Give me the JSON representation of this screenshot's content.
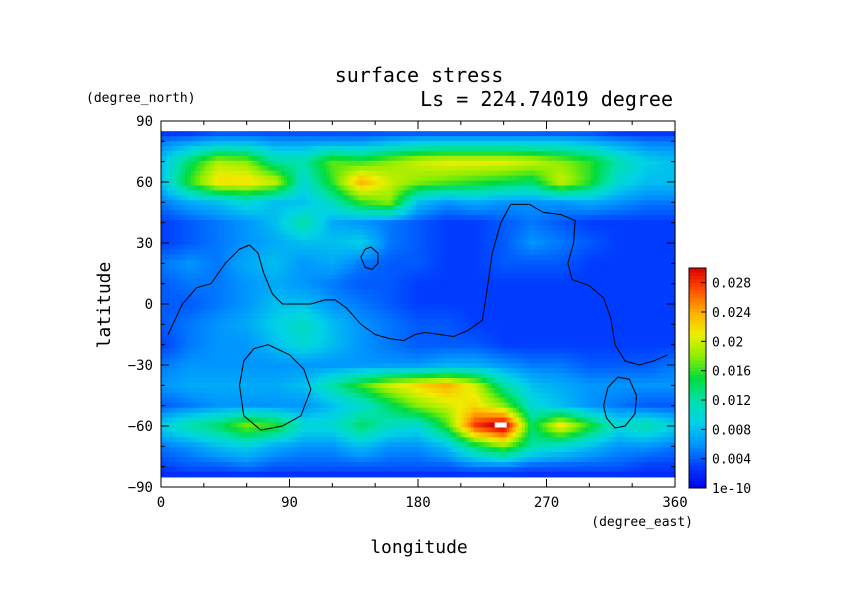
{
  "chart_data": {
    "type": "heatmap",
    "title": "surface stress",
    "subtitle": "Ls = 224.74019 degree",
    "xlabel": "longitude",
    "ylabel": "latitude",
    "x_unit": "(degree_east)",
    "y_unit": "(degree_north)",
    "xlim": [
      0,
      360
    ],
    "ylim": [
      -90,
      90
    ],
    "x_ticks": [
      0,
      90,
      180,
      270,
      360
    ],
    "y_ticks": [
      90,
      60,
      30,
      0,
      -30,
      -60,
      -90
    ],
    "colorbar": {
      "min": 1e-10,
      "max": 0.03,
      "labels": [
        "0.028",
        "0.024",
        "0.02",
        "0.016",
        "0.012",
        "0.008",
        "0.004",
        "1e-10"
      ],
      "label_values": [
        0.028,
        0.024,
        0.02,
        0.016,
        0.012,
        0.008,
        0.004,
        0
      ]
    },
    "grid_note": "approximate field, lon step 20°, lat step 10°",
    "grid": {
      "lons": [
        0,
        20,
        40,
        60,
        80,
        100,
        120,
        140,
        160,
        180,
        200,
        220,
        240,
        260,
        280,
        300,
        320,
        340,
        360
      ],
      "lats": [
        85,
        80,
        70,
        60,
        50,
        40,
        30,
        20,
        10,
        0,
        -10,
        -20,
        -30,
        -40,
        -50,
        -60,
        -70,
        -80,
        -85
      ],
      "values": [
        [
          0.002,
          0.002,
          0.003,
          0.003,
          0.003,
          0.003,
          0.003,
          0.003,
          0.003,
          0.003,
          0.003,
          0.003,
          0.003,
          0.003,
          0.003,
          0.003,
          0.002,
          0.002,
          0.002
        ],
        [
          0.005,
          0.006,
          0.007,
          0.007,
          0.006,
          0.006,
          0.006,
          0.006,
          0.007,
          0.008,
          0.008,
          0.008,
          0.008,
          0.008,
          0.008,
          0.007,
          0.006,
          0.005,
          0.005
        ],
        [
          0.008,
          0.014,
          0.019,
          0.018,
          0.012,
          0.012,
          0.017,
          0.016,
          0.018,
          0.02,
          0.021,
          0.021,
          0.021,
          0.02,
          0.018,
          0.016,
          0.012,
          0.009,
          0.008
        ],
        [
          0.008,
          0.016,
          0.022,
          0.022,
          0.02,
          0.01,
          0.016,
          0.024,
          0.02,
          0.018,
          0.017,
          0.016,
          0.015,
          0.014,
          0.02,
          0.016,
          0.01,
          0.008,
          0.008
        ],
        [
          0.005,
          0.007,
          0.008,
          0.01,
          0.008,
          0.008,
          0.011,
          0.016,
          0.018,
          0.008,
          0.006,
          0.007,
          0.006,
          0.006,
          0.006,
          0.007,
          0.006,
          0.005,
          0.005
        ],
        [
          0.003,
          0.004,
          0.005,
          0.006,
          0.008,
          0.012,
          0.007,
          0.006,
          0.005,
          0.004,
          0.003,
          0.003,
          0.004,
          0.005,
          0.004,
          0.003,
          0.003,
          0.003,
          0.003
        ],
        [
          0.003,
          0.004,
          0.005,
          0.006,
          0.007,
          0.008,
          0.008,
          0.009,
          0.005,
          0.004,
          0.003,
          0.003,
          0.004,
          0.006,
          0.005,
          0.004,
          0.003,
          0.003,
          0.003
        ],
        [
          0.005,
          0.006,
          0.005,
          0.007,
          0.008,
          0.006,
          0.007,
          0.005,
          0.004,
          0.004,
          0.003,
          0.003,
          0.004,
          0.004,
          0.004,
          0.003,
          0.003,
          0.003,
          0.003
        ],
        [
          0.004,
          0.005,
          0.005,
          0.006,
          0.007,
          0.006,
          0.005,
          0.004,
          0.004,
          0.003,
          0.003,
          0.003,
          0.003,
          0.003,
          0.003,
          0.003,
          0.003,
          0.003,
          0.003
        ],
        [
          0.004,
          0.004,
          0.005,
          0.006,
          0.008,
          0.008,
          0.006,
          0.005,
          0.004,
          0.003,
          0.003,
          0.003,
          0.003,
          0.003,
          0.003,
          0.003,
          0.003,
          0.003,
          0.003
        ],
        [
          0.004,
          0.005,
          0.006,
          0.007,
          0.009,
          0.011,
          0.008,
          0.006,
          0.005,
          0.004,
          0.004,
          0.003,
          0.003,
          0.003,
          0.003,
          0.003,
          0.003,
          0.003,
          0.003
        ],
        [
          0.003,
          0.005,
          0.006,
          0.006,
          0.008,
          0.01,
          0.008,
          0.006,
          0.005,
          0.004,
          0.004,
          0.004,
          0.003,
          0.003,
          0.003,
          0.003,
          0.003,
          0.003,
          0.003
        ],
        [
          0.005,
          0.006,
          0.006,
          0.006,
          0.006,
          0.006,
          0.006,
          0.006,
          0.006,
          0.006,
          0.007,
          0.007,
          0.006,
          0.005,
          0.005,
          0.004,
          0.004,
          0.004,
          0.005
        ],
        [
          0.006,
          0.007,
          0.007,
          0.007,
          0.007,
          0.008,
          0.012,
          0.016,
          0.02,
          0.022,
          0.024,
          0.02,
          0.012,
          0.008,
          0.007,
          0.006,
          0.006,
          0.006,
          0.006
        ],
        [
          0.004,
          0.005,
          0.006,
          0.006,
          0.006,
          0.006,
          0.008,
          0.01,
          0.014,
          0.018,
          0.02,
          0.022,
          0.018,
          0.01,
          0.008,
          0.006,
          0.005,
          0.004,
          0.004
        ],
        [
          0.009,
          0.012,
          0.014,
          0.018,
          0.016,
          0.01,
          0.01,
          0.014,
          0.011,
          0.01,
          0.016,
          0.028,
          0.032,
          0.014,
          0.022,
          0.016,
          0.01,
          0.012,
          0.009
        ],
        [
          0.005,
          0.006,
          0.008,
          0.009,
          0.007,
          0.006,
          0.006,
          0.008,
          0.006,
          0.006,
          0.008,
          0.014,
          0.018,
          0.012,
          0.01,
          0.008,
          0.006,
          0.006,
          0.005
        ],
        [
          0.003,
          0.004,
          0.004,
          0.005,
          0.004,
          0.004,
          0.004,
          0.004,
          0.004,
          0.004,
          0.004,
          0.005,
          0.005,
          0.004,
          0.004,
          0.004,
          0.004,
          0.003,
          0.003
        ],
        [
          0.002,
          0.002,
          0.002,
          0.002,
          0.002,
          0.002,
          0.002,
          0.002,
          0.002,
          0.002,
          0.002,
          0.002,
          0.002,
          0.002,
          0.002,
          0.002,
          0.002,
          0.002,
          0.002
        ]
      ]
    },
    "contours": [
      {
        "name": "contour-1",
        "closed": false,
        "points": [
          [
            5,
            -15
          ],
          [
            15,
            0
          ],
          [
            25,
            8
          ],
          [
            35,
            10
          ],
          [
            45,
            20
          ],
          [
            55,
            27
          ],
          [
            62,
            29
          ],
          [
            68,
            25
          ],
          [
            72,
            15
          ],
          [
            78,
            5
          ],
          [
            85,
            0
          ],
          [
            95,
            0
          ],
          [
            105,
            0
          ],
          [
            115,
            2
          ],
          [
            122,
            2
          ],
          [
            130,
            -2
          ],
          [
            140,
            -10
          ],
          [
            150,
            -15
          ],
          [
            160,
            -17
          ],
          [
            170,
            -18
          ],
          [
            178,
            -15
          ],
          [
            185,
            -14
          ],
          [
            195,
            -15
          ],
          [
            205,
            -16
          ],
          [
            215,
            -13
          ],
          [
            225,
            -8
          ],
          [
            228,
            5
          ],
          [
            230,
            15
          ],
          [
            232,
            25
          ],
          [
            238,
            40
          ],
          [
            245,
            49
          ],
          [
            258,
            49
          ],
          [
            268,
            45
          ],
          [
            280,
            44
          ],
          [
            290,
            41
          ],
          [
            289,
            30
          ],
          [
            285,
            20
          ],
          [
            288,
            12
          ],
          [
            300,
            9
          ],
          [
            310,
            3
          ],
          [
            315,
            -7
          ],
          [
            318,
            -20
          ],
          [
            325,
            -28
          ],
          [
            335,
            -30
          ],
          [
            345,
            -28
          ],
          [
            355,
            -25
          ]
        ]
      },
      {
        "name": "contour-2",
        "closed": true,
        "points": [
          [
            140,
            23
          ],
          [
            143,
            27
          ],
          [
            147,
            28
          ],
          [
            152,
            25
          ],
          [
            152,
            20
          ],
          [
            148,
            17
          ],
          [
            143,
            18
          ]
        ]
      },
      {
        "name": "contour-3",
        "closed": true,
        "points": [
          [
            55,
            -40
          ],
          [
            58,
            -28
          ],
          [
            65,
            -22
          ],
          [
            75,
            -20
          ],
          [
            90,
            -25
          ],
          [
            100,
            -32
          ],
          [
            105,
            -42
          ],
          [
            98,
            -55
          ],
          [
            85,
            -60
          ],
          [
            70,
            -62
          ],
          [
            58,
            -55
          ]
        ]
      },
      {
        "name": "contour-4",
        "closed": true,
        "points": [
          [
            310,
            -50
          ],
          [
            313,
            -41
          ],
          [
            320,
            -36
          ],
          [
            328,
            -37
          ],
          [
            333,
            -45
          ],
          [
            332,
            -54
          ],
          [
            325,
            -60
          ],
          [
            318,
            -61
          ],
          [
            312,
            -56
          ]
        ]
      }
    ]
  }
}
